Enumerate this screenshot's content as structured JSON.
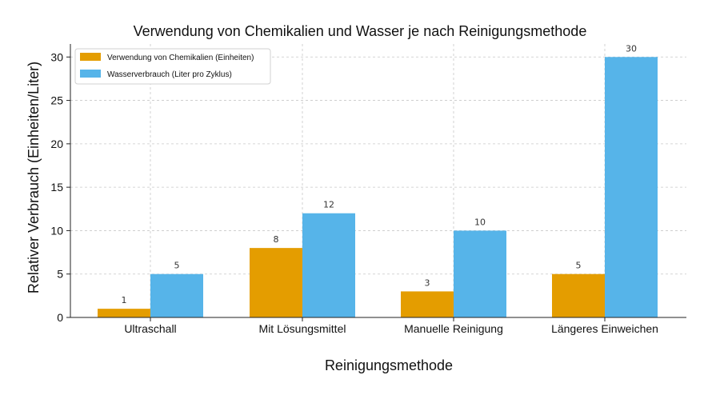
{
  "chart_data": {
    "type": "bar",
    "title": "Verwendung von Chemikalien und Wasser je nach Reinigungsmethode",
    "xlabel": "Reinigungsmethode",
    "ylabel": "Relativer Verbrauch (Einheiten/Liter)",
    "categories": [
      "Ultraschall",
      "Mit Lösungsmittel",
      "Manuelle Reinigung",
      "Längeres Einweichen"
    ],
    "series": [
      {
        "name": "Verwendung von Chemikalien (Einheiten)",
        "values": [
          1,
          8,
          3,
          5
        ],
        "color": "#E49D00"
      },
      {
        "name": "Wasserverbrauch (Liter pro Zyklus)",
        "values": [
          5,
          12,
          10,
          30
        ],
        "color": "#56B4E9"
      }
    ],
    "ylim": [
      0,
      31.5
    ],
    "yticks": [
      0,
      5,
      10,
      15,
      20,
      25,
      30
    ],
    "grid": true,
    "legend_position": "top-left"
  }
}
